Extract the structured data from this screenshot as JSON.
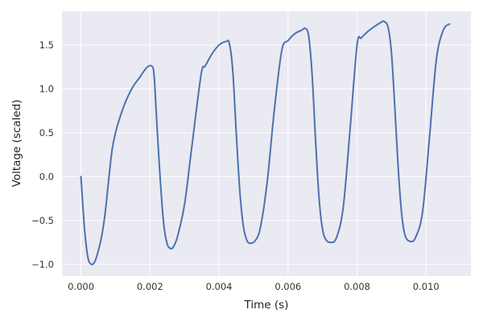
{
  "chart_data": {
    "type": "line",
    "title": "",
    "xlabel": "Time (s)",
    "ylabel": "Voltage (scaled)",
    "xlim": [
      -0.00055,
      0.0113
    ],
    "ylim": [
      -1.135,
      1.885
    ],
    "x_ticks": [
      0.0,
      0.002,
      0.004,
      0.006,
      0.008,
      0.01
    ],
    "x_tick_labels": [
      "0.000",
      "0.002",
      "0.004",
      "0.006",
      "0.008",
      "0.010"
    ],
    "y_ticks": [
      -1.0,
      -0.5,
      0.0,
      0.5,
      1.0,
      1.5
    ],
    "y_tick_labels": [
      "−1.0",
      "−0.5",
      "0.0",
      "0.5",
      "1.0",
      "1.5"
    ],
    "grid": true,
    "legend": "none",
    "colors": {
      "background": "#EAEAF2",
      "grid": "#FFFFFF",
      "line": "#4C72B0"
    },
    "series": [
      {
        "x": [
          0.0,
          0.0001,
          0.0002,
          0.0003,
          0.0004,
          0.0005,
          0.0006,
          0.0007,
          0.0008,
          0.0009,
          0.00102,
          0.00115,
          0.0013,
          0.0015,
          0.0017,
          0.0019,
          0.00205,
          0.00212,
          0.0022,
          0.0023,
          0.0024,
          0.0025,
          0.0026,
          0.00268,
          0.0028,
          0.003,
          0.0032,
          0.00348,
          0.0036,
          0.0038,
          0.004,
          0.0042,
          0.0043,
          0.0044,
          0.0045,
          0.0046,
          0.0047,
          0.0048,
          0.0049,
          0.00505,
          0.0052,
          0.0054,
          0.0056,
          0.00582,
          0.006,
          0.0062,
          0.0064,
          0.0065,
          0.0066,
          0.0067,
          0.0068,
          0.0069,
          0.007,
          0.0071,
          0.00723,
          0.0074,
          0.0076,
          0.0078,
          0.008,
          0.00812,
          0.0083,
          0.0085,
          0.0087,
          0.00878,
          0.0089,
          0.009,
          0.0091,
          0.0092,
          0.0093,
          0.0094,
          0.00955,
          0.0097,
          0.0099,
          0.0101,
          0.0103,
          0.0105,
          0.01068
        ],
        "y": [
          0.0,
          -0.58,
          -0.92,
          -1.0,
          -0.97,
          -0.85,
          -0.68,
          -0.42,
          -0.05,
          0.3,
          0.53,
          0.7,
          0.86,
          1.02,
          1.13,
          1.24,
          1.26,
          1.15,
          0.6,
          -0.05,
          -0.55,
          -0.77,
          -0.82,
          -0.8,
          -0.68,
          -0.32,
          0.3,
          1.16,
          1.26,
          1.4,
          1.5,
          1.54,
          1.52,
          1.2,
          0.5,
          -0.15,
          -0.55,
          -0.72,
          -0.76,
          -0.73,
          -0.58,
          -0.05,
          0.75,
          1.44,
          1.55,
          1.63,
          1.67,
          1.69,
          1.6,
          1.15,
          0.4,
          -0.25,
          -0.6,
          -0.72,
          -0.75,
          -0.7,
          -0.35,
          0.55,
          1.5,
          1.58,
          1.65,
          1.71,
          1.76,
          1.77,
          1.7,
          1.4,
          0.75,
          0.05,
          -0.45,
          -0.68,
          -0.74,
          -0.69,
          -0.4,
          0.45,
          1.34,
          1.67,
          1.74
        ]
      }
    ]
  }
}
